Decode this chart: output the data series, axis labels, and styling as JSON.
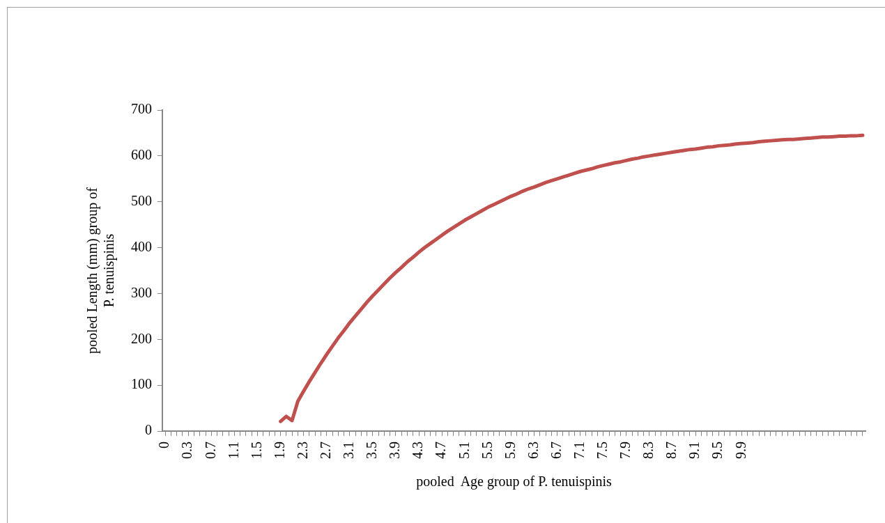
{
  "chart_data": {
    "type": "line",
    "xlabel": "pooled  Age group of P. tenuispinis",
    "ylabel": "pooled Length (mm) group of\nP. tenuispinis",
    "categories": [
      "0",
      null,
      null,
      null,
      "0.3",
      null,
      null,
      null,
      "0.7",
      null,
      null,
      null,
      "1.1",
      null,
      null,
      null,
      "1.5",
      null,
      null,
      null,
      "1.9",
      null,
      null,
      null,
      "2.3",
      null,
      null,
      null,
      "2.7",
      null,
      null,
      null,
      "3.1",
      null,
      null,
      null,
      "3.5",
      null,
      null,
      null,
      "3.9",
      null,
      null,
      null,
      "4.3",
      null,
      null,
      null,
      "4.7",
      null,
      null,
      null,
      "5.1",
      null,
      null,
      null,
      "5.5",
      null,
      null,
      null,
      "5.9",
      null,
      null,
      null,
      "6.3",
      null,
      null,
      null,
      "6.7",
      null,
      null,
      null,
      "7.1",
      null,
      null,
      null,
      "7.5",
      null,
      null,
      null,
      "7.9",
      null,
      null,
      null,
      "8.3",
      null,
      null,
      null,
      "8.7",
      null,
      null,
      null,
      "9.1",
      null,
      null,
      null,
      "9.5",
      null,
      null,
      null,
      "9.9",
      null,
      null,
      null,
      null,
      null,
      null,
      null,
      null,
      null,
      null,
      null,
      null,
      null,
      null,
      null,
      null,
      null,
      null,
      null,
      null,
      null
    ],
    "series": [
      {
        "color": "#c0504d",
        "values": [
          null,
          null,
          null,
          null,
          null,
          null,
          null,
          null,
          null,
          null,
          null,
          null,
          null,
          null,
          null,
          null,
          null,
          null,
          null,
          null,
          21,
          32,
          23,
          65,
          87,
          108,
          128,
          148,
          167,
          185,
          203,
          219,
          236,
          251,
          266,
          281,
          295,
          308,
          321,
          334,
          346,
          357,
          369,
          379,
          390,
          400,
          409,
          418,
          427,
          436,
          444,
          452,
          460,
          467,
          474,
          481,
          488,
          494,
          500,
          506,
          512,
          517,
          523,
          528,
          532,
          537,
          542,
          546,
          550,
          554,
          558,
          562,
          566,
          569,
          572,
          576,
          579,
          582,
          585,
          587,
          590,
          593,
          595,
          598,
          600,
          602,
          604,
          606,
          608,
          610,
          612,
          614,
          615,
          617,
          619,
          620,
          622,
          623,
          624,
          626,
          627,
          628,
          629,
          631,
          632,
          633,
          634,
          635,
          636,
          636,
          637,
          638,
          639,
          640,
          641,
          641,
          642,
          643,
          643,
          644,
          644,
          645
        ]
      }
    ],
    "ylim": [
      0,
      700
    ],
    "yticks": [
      0,
      100,
      200,
      300,
      400,
      500,
      600,
      700
    ],
    "grid": false,
    "legend": false,
    "marker": "none",
    "line_style": "solid"
  }
}
